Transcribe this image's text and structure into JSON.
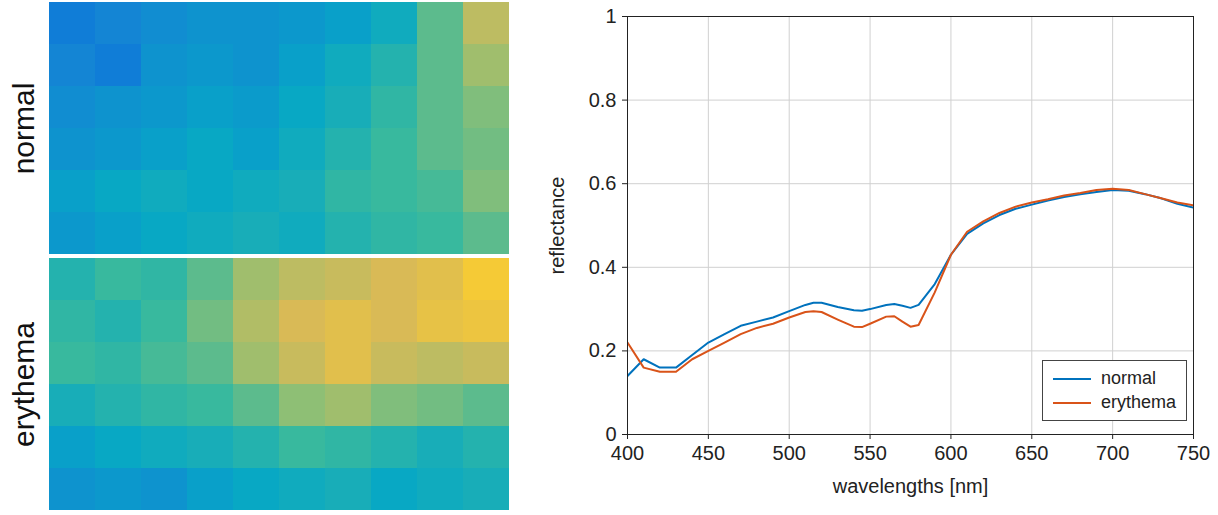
{
  "chart_data": [
    {
      "type": "heatmap",
      "ylabel": "normal",
      "tick_labels": false,
      "clim": [
        0,
        1
      ],
      "cells": [
        [
          0.22,
          0.25,
          0.28,
          0.3,
          0.3,
          0.32,
          0.35,
          0.4,
          0.55,
          0.7
        ],
        [
          0.25,
          0.22,
          0.3,
          0.32,
          0.3,
          0.35,
          0.4,
          0.45,
          0.55,
          0.65
        ],
        [
          0.28,
          0.3,
          0.32,
          0.35,
          0.33,
          0.38,
          0.42,
          0.48,
          0.55,
          0.6
        ],
        [
          0.3,
          0.32,
          0.35,
          0.38,
          0.35,
          0.4,
          0.45,
          0.5,
          0.55,
          0.58
        ],
        [
          0.35,
          0.38,
          0.4,
          0.38,
          0.4,
          0.42,
          0.48,
          0.5,
          0.52,
          0.6
        ],
        [
          0.32,
          0.35,
          0.38,
          0.4,
          0.42,
          0.4,
          0.45,
          0.48,
          0.5,
          0.55
        ]
      ]
    },
    {
      "type": "heatmap",
      "ylabel": "erythema",
      "tick_labels": false,
      "clim": [
        0,
        1
      ],
      "cells": [
        [
          0.45,
          0.5,
          0.48,
          0.55,
          0.65,
          0.7,
          0.72,
          0.75,
          0.78,
          0.85
        ],
        [
          0.48,
          0.45,
          0.5,
          0.58,
          0.68,
          0.75,
          0.78,
          0.75,
          0.8,
          0.82
        ],
        [
          0.5,
          0.48,
          0.52,
          0.55,
          0.65,
          0.72,
          0.78,
          0.72,
          0.7,
          0.72
        ],
        [
          0.42,
          0.45,
          0.48,
          0.5,
          0.55,
          0.62,
          0.65,
          0.6,
          0.58,
          0.55
        ],
        [
          0.35,
          0.38,
          0.4,
          0.42,
          0.45,
          0.5,
          0.48,
          0.45,
          0.42,
          0.45
        ],
        [
          0.3,
          0.32,
          0.3,
          0.35,
          0.38,
          0.4,
          0.42,
          0.38,
          0.4,
          0.42
        ]
      ]
    },
    {
      "type": "line",
      "xlabel": "wavelengths [nm]",
      "ylabel": "reflectance",
      "xlim": [
        400,
        750
      ],
      "ylim": [
        0,
        1
      ],
      "xticks": [
        400,
        450,
        500,
        550,
        600,
        650,
        700,
        750
      ],
      "yticks": [
        0,
        0.2,
        0.4,
        0.6,
        0.8,
        1
      ],
      "grid": true,
      "legend": "bottom-right",
      "x": [
        400,
        410,
        420,
        430,
        440,
        450,
        460,
        470,
        480,
        490,
        500,
        510,
        515,
        520,
        530,
        540,
        545,
        550,
        560,
        565,
        570,
        575,
        580,
        590,
        600,
        610,
        620,
        630,
        640,
        650,
        660,
        670,
        680,
        690,
        700,
        710,
        720,
        730,
        740,
        750
      ],
      "series": [
        {
          "name": "normal",
          "color": "#0072bd",
          "values": [
            0.14,
            0.18,
            0.16,
            0.16,
            0.19,
            0.22,
            0.24,
            0.26,
            0.27,
            0.28,
            0.295,
            0.31,
            0.315,
            0.315,
            0.305,
            0.297,
            0.296,
            0.3,
            0.31,
            0.312,
            0.308,
            0.303,
            0.31,
            0.36,
            0.43,
            0.48,
            0.505,
            0.525,
            0.54,
            0.55,
            0.56,
            0.568,
            0.575,
            0.58,
            0.585,
            0.583,
            0.575,
            0.565,
            0.552,
            0.543
          ]
        },
        {
          "name": "erythema",
          "color": "#d95319",
          "values": [
            0.22,
            0.16,
            0.15,
            0.15,
            0.18,
            0.2,
            0.22,
            0.24,
            0.255,
            0.265,
            0.28,
            0.293,
            0.295,
            0.293,
            0.275,
            0.258,
            0.257,
            0.265,
            0.282,
            0.283,
            0.27,
            0.258,
            0.262,
            0.34,
            0.43,
            0.485,
            0.51,
            0.53,
            0.545,
            0.555,
            0.563,
            0.572,
            0.578,
            0.585,
            0.588,
            0.585,
            0.575,
            0.565,
            0.555,
            0.548
          ]
        }
      ]
    }
  ]
}
